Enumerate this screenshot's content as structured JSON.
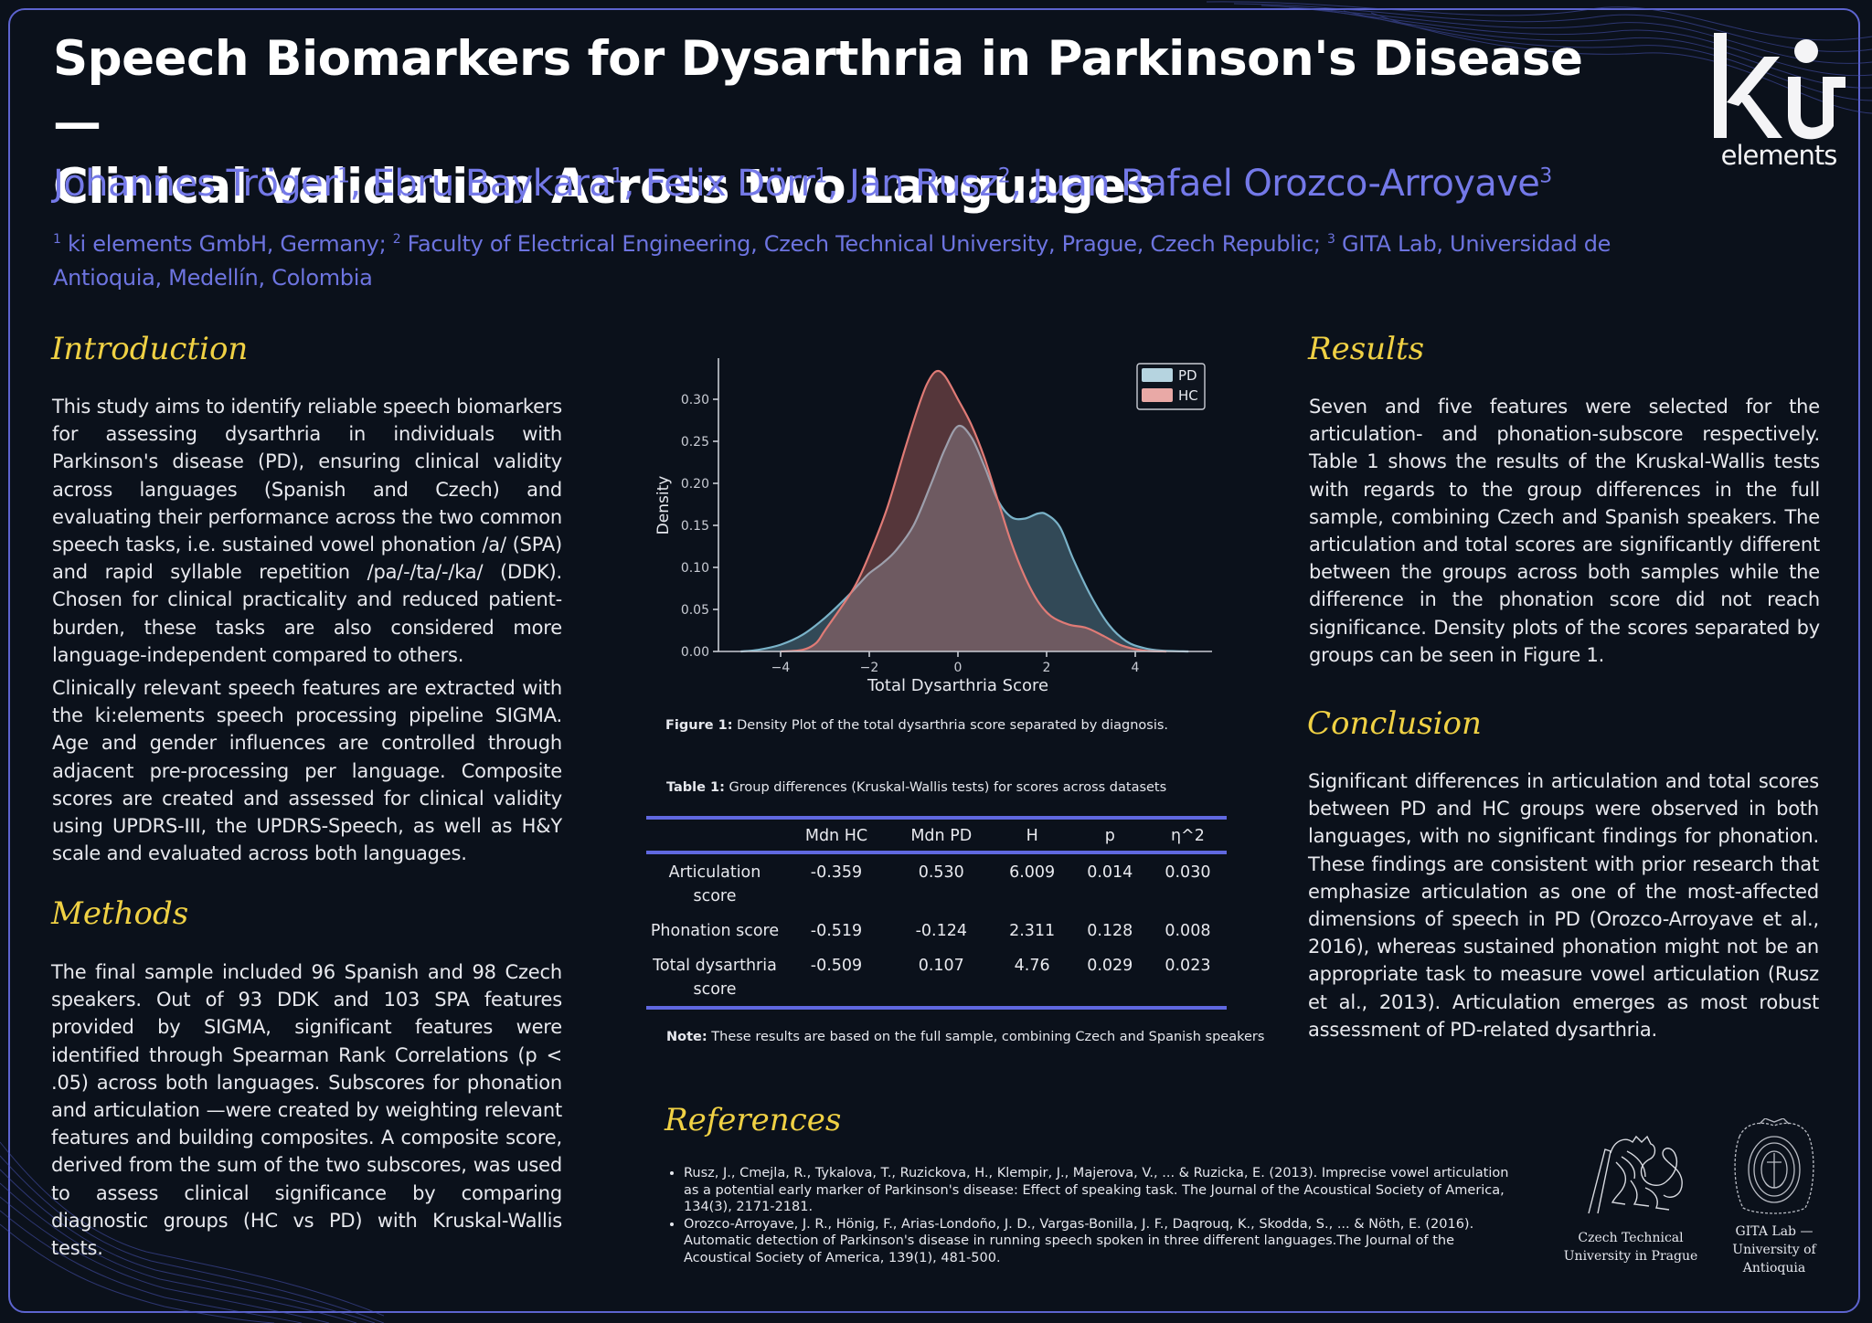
{
  "poster": {
    "title": "Speech Biomarkers for Dysarthria in Parkinson's Disease — Clinical Validation Across two Languages",
    "title_line1": "Speech Biomarkers for Dysarthria in Parkinson's Disease —",
    "title_line2": "Clinical Validation Across two Languages",
    "authors": [
      {
        "name": "Johannes Tröger",
        "affil": "1"
      },
      {
        "name": "Ebru Baykara",
        "affil": "1"
      },
      {
        "name": "Felix Dörr",
        "affil": "1"
      },
      {
        "name": "Jan Rusz",
        "affil": "2"
      },
      {
        "name": "Juan Rafael Orozco-Arroyave",
        "affil": "3"
      }
    ],
    "affiliations": [
      {
        "num": "1",
        "text": "ki elements GmbH, Germany;"
      },
      {
        "num": "2",
        "text": "Faculty of Electrical Engineering, Czech Technical University, Prague, Czech Republic;"
      },
      {
        "num": "3",
        "text": "GITA Lab, Universidad de Antioquia, Medellín, Colombia"
      }
    ],
    "logo": {
      "mark": "ki",
      "word": "elements"
    }
  },
  "colors": {
    "background": "#0b111b",
    "frame": "#5d64cf",
    "heading": "#f0d144",
    "authors": "#7479e8",
    "pd": "#7ab3c9",
    "hc": "#e07b76",
    "table_rule": "#6068e0"
  },
  "sections": {
    "introduction": {
      "heading": "Introduction",
      "paragraphs": [
        "This study aims to identify reliable speech biomarkers for assessing dysarthria in individuals with Parkinson's disease (PD), ensuring clinical validity across languages (Spanish and Czech) and evaluating their performance across the two common speech tasks, i.e.  sustained vowel phonation /a/ (SPA) and rapid syllable repetition /pa/-/ta/-/ka/ (DDK). Chosen for clinical practicality and reduced patient-burden, these tasks are also considered more language-independent compared to others.",
        "Clinically relevant speech features are extracted with the ki:elements speech processing pipeline SIGMA. Age and gender influences are controlled through adjacent pre-processing per language. Composite scores are created and assessed for clinical validity using UPDRS-III, the UPDRS-Speech, as well as H&Y scale and evaluated across both languages."
      ]
    },
    "methods": {
      "heading": "Methods",
      "paragraphs": [
        "The final sample included 96 Spanish and 98 Czech speakers. Out of 93 DDK and 103 SPA features provided by SIGMA, significant features were identified through Spearman Rank Correlations (p < .05) across both languages. Subscores for phonation and articulation —were created by weighting relevant features and building composites. A composite score, derived from the sum of the two subscores, was used to assess clinical significance by comparing diagnostic groups (HC vs PD) with Kruskal-Wallis tests."
      ]
    },
    "results": {
      "heading": "Results",
      "paragraphs": [
        "Seven and five features were selected for the articulation- and phonation-subscore respectively. Table 1 shows the results of the Kruskal-Wallis tests with regards to the group differences in the full sample, combining Czech and Spanish speakers. The articulation and total scores are significantly different between the groups across both samples while the difference in the phonation score did not reach significance. Density plots of the scores separated by groups can be seen in Figure 1."
      ]
    },
    "conclusion": {
      "heading": "Conclusion",
      "paragraphs": [
        "Significant differences in articulation and total scores between PD and HC groups were observed in both languages, with no significant findings for phonation. These findings are consistent with prior research that emphasize articulation as one of the most-affected dimensions of speech in PD (Orozco-Arroyave et al., 2016), whereas sustained phonation might not be an appropriate task to measure vowel articulation (Rusz et al., 2013). Articulation emerges as most robust assessment of PD-related dysarthria."
      ]
    },
    "references": {
      "heading": "References",
      "items": [
        "Rusz, J., Cmejla, R., Tykalova, T., Ruzickova, H., Klempir, J., Majerova, V., ... & Ruzicka, E. (2013). Imprecise vowel articulation as a potential early marker of Parkinson's disease: Effect of speaking task. The Journal of the Acoustical Society of America, 134(3), 2171-2181.",
        "Orozco-Arroyave, J. R., Hönig, F., Arias-Londoño, J. D., Vargas-Bonilla, J. F., Daqrouq, K., Skodda, S., ... & Nöth, E. (2016). Automatic detection of Parkinson's disease in running speech spoken in three different languages.The Journal of the Acoustical Society of America, 139(1), 481-500."
      ]
    }
  },
  "figure": {
    "label": "Figure 1:",
    "caption": " Density Plot of the total dysarthria score separated by diagnosis."
  },
  "table": {
    "label": "Table 1:",
    "caption": " Group differences (Kruskal-Wallis tests) for scores across datasets",
    "columns": [
      "",
      "Mdn HC",
      "Mdn PD",
      "H",
      "p",
      "η^2"
    ],
    "rows": [
      [
        "Articulation score",
        "-0.359",
        "0.530",
        "6.009",
        "0.014",
        "0.030"
      ],
      [
        "Phonation score",
        "-0.519",
        "-0.124",
        "2.311",
        "0.128",
        "0.008"
      ],
      [
        "Total dysarthria score",
        "-0.509",
        "0.107",
        "4.76",
        "0.029",
        "0.023"
      ]
    ],
    "note_label": "Note:",
    "note": " These results are based on the full sample, combining Czech and Spanish speakers"
  },
  "institutions": [
    {
      "name_line1": "Czech Technical",
      "name_line2": "University in Prague",
      "name_line3": ""
    },
    {
      "name_line1": "GITA Lab —",
      "name_line2": "University of",
      "name_line3": "Antioquia"
    }
  ],
  "chart_data": {
    "type": "area",
    "title": "",
    "xlabel": "Total Dysarthria Score",
    "ylabel": "Density",
    "xlim": [
      -5.4,
      5.7
    ],
    "ylim": [
      0,
      0.35
    ],
    "xticks": [
      -4,
      -2,
      0,
      2,
      4
    ],
    "xtick_labels": [
      "−4",
      "−2",
      "0",
      "2",
      "4"
    ],
    "yticks": [
      0.0,
      0.05,
      0.1,
      0.15,
      0.2,
      0.25,
      0.3
    ],
    "ytick_labels": [
      "0.00",
      "0.05",
      "0.10",
      "0.15",
      "0.20",
      "0.25",
      "0.30"
    ],
    "grid": false,
    "legend_position": "upper right",
    "series": [
      {
        "name": "PD",
        "color": "#7ab3c9",
        "x": [
          -4.9,
          -4.5,
          -4.0,
          -3.5,
          -3.0,
          -2.5,
          -2.2,
          -2.0,
          -1.7,
          -1.4,
          -1.0,
          -0.6,
          -0.3,
          0.0,
          0.3,
          0.6,
          0.9,
          1.2,
          1.5,
          1.8,
          2.0,
          2.3,
          2.6,
          3.0,
          3.4,
          3.8,
          4.2,
          4.6,
          5.2
        ],
        "density": [
          0.0,
          0.002,
          0.008,
          0.02,
          0.04,
          0.065,
          0.082,
          0.093,
          0.105,
          0.12,
          0.15,
          0.2,
          0.24,
          0.268,
          0.255,
          0.22,
          0.18,
          0.16,
          0.158,
          0.164,
          0.163,
          0.148,
          0.11,
          0.066,
          0.032,
          0.012,
          0.004,
          0.001,
          0.0
        ]
      },
      {
        "name": "HC",
        "color": "#e07b76",
        "x": [
          -4.0,
          -3.5,
          -3.2,
          -3.0,
          -2.6,
          -2.3,
          -2.0,
          -1.6,
          -1.2,
          -0.9,
          -0.7,
          -0.5,
          -0.3,
          0.0,
          0.3,
          0.6,
          0.9,
          1.2,
          1.5,
          1.8,
          2.1,
          2.5,
          2.9,
          3.3,
          3.7,
          4.2,
          4.7
        ],
        "density": [
          0.0,
          0.002,
          0.01,
          0.025,
          0.055,
          0.08,
          0.115,
          0.17,
          0.24,
          0.29,
          0.318,
          0.333,
          0.328,
          0.3,
          0.27,
          0.23,
          0.18,
          0.13,
          0.09,
          0.06,
          0.042,
          0.032,
          0.028,
          0.018,
          0.007,
          0.001,
          0.0
        ]
      }
    ]
  }
}
